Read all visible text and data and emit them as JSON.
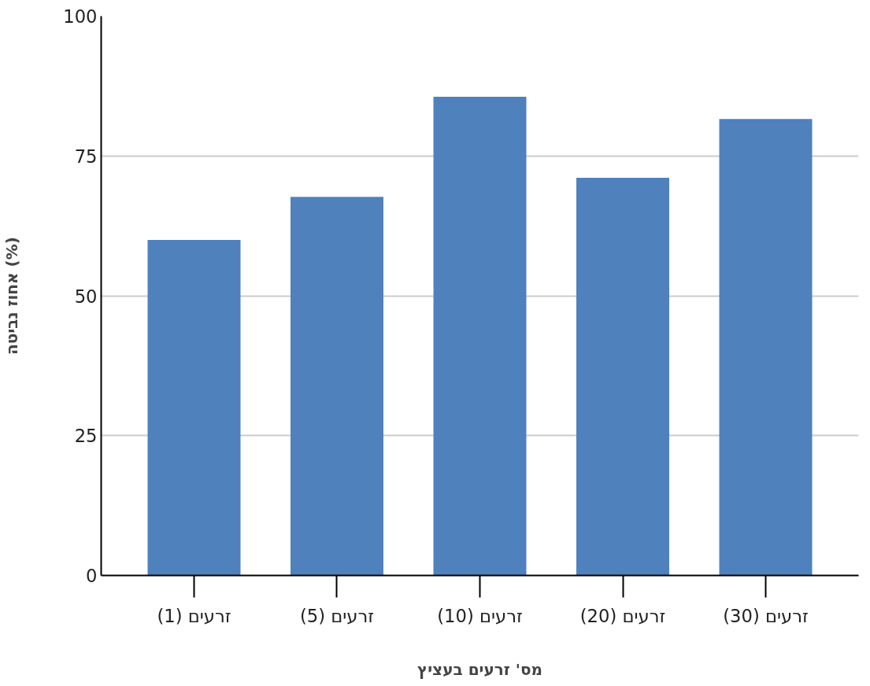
{
  "chart_data": {
    "type": "bar",
    "xlabel": "מס' זרעים בעציץ",
    "ylabel": "אחוז נביטה (%)",
    "categories": [
      "זרעים (1)",
      "זרעים (5)",
      "זרעים (10)",
      "זרעים (20)",
      "זרעים (30)"
    ],
    "series": [
      {
        "color": "#4f81bd",
        "values": [
          60,
          67.7,
          85.6,
          71.1,
          81.6
        ]
      }
    ],
    "ylim": [
      0,
      100
    ],
    "yticks": [
      0,
      25,
      50,
      75,
      100
    ],
    "grid": "y"
  }
}
